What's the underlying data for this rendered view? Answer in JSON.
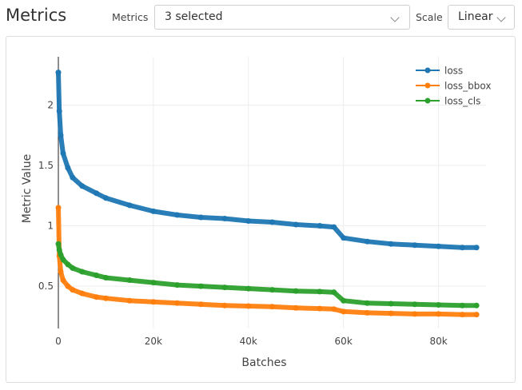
{
  "header": {
    "title": "Metrics",
    "metrics_label": "Metrics",
    "metrics_value": "3 selected",
    "scale_label": "Scale",
    "scale_value": "Linear"
  },
  "chart_data": {
    "type": "line",
    "xlabel": "Batches",
    "ylabel": "Metric Value",
    "xlim": [
      0,
      90000
    ],
    "ylim": [
      0.15,
      2.4
    ],
    "x_ticks": [
      0,
      20000,
      40000,
      60000,
      80000
    ],
    "x_tick_labels": [
      "0",
      "20k",
      "40k",
      "60k",
      "80k"
    ],
    "y_ticks": [
      0.5,
      1,
      1.5,
      2
    ],
    "y_tick_labels": [
      "0.5",
      "1",
      "1.5",
      "2"
    ],
    "grid": true,
    "legend_position": "top-right",
    "series": [
      {
        "name": "loss",
        "color": "#1f77b4",
        "x": [
          0,
          200,
          500,
          1000,
          2000,
          3000,
          5000,
          8000,
          10000,
          15000,
          20000,
          25000,
          30000,
          35000,
          40000,
          45000,
          50000,
          55000,
          58000,
          60000,
          65000,
          70000,
          75000,
          80000,
          85000,
          88000
        ],
        "y": [
          2.27,
          1.95,
          1.75,
          1.6,
          1.48,
          1.4,
          1.33,
          1.27,
          1.23,
          1.17,
          1.12,
          1.09,
          1.07,
          1.06,
          1.04,
          1.03,
          1.01,
          1.0,
          0.99,
          0.9,
          0.87,
          0.85,
          0.84,
          0.83,
          0.82,
          0.82
        ]
      },
      {
        "name": "loss_bbox",
        "color": "#ff7f0e",
        "x": [
          0,
          200,
          500,
          1000,
          2000,
          3000,
          5000,
          8000,
          10000,
          15000,
          20000,
          25000,
          30000,
          35000,
          40000,
          45000,
          50000,
          55000,
          58000,
          60000,
          65000,
          70000,
          75000,
          80000,
          85000,
          88000
        ],
        "y": [
          1.15,
          0.75,
          0.62,
          0.55,
          0.5,
          0.47,
          0.44,
          0.41,
          0.4,
          0.38,
          0.37,
          0.36,
          0.35,
          0.34,
          0.335,
          0.33,
          0.32,
          0.315,
          0.31,
          0.29,
          0.28,
          0.275,
          0.27,
          0.27,
          0.265,
          0.265
        ]
      },
      {
        "name": "loss_cls",
        "color": "#2ca02c",
        "x": [
          0,
          200,
          500,
          1000,
          2000,
          3000,
          5000,
          8000,
          10000,
          15000,
          20000,
          25000,
          30000,
          35000,
          40000,
          45000,
          50000,
          55000,
          58000,
          60000,
          65000,
          70000,
          75000,
          80000,
          85000,
          88000
        ],
        "y": [
          0.85,
          0.8,
          0.76,
          0.72,
          0.68,
          0.65,
          0.62,
          0.59,
          0.57,
          0.55,
          0.53,
          0.51,
          0.5,
          0.49,
          0.48,
          0.47,
          0.46,
          0.455,
          0.45,
          0.38,
          0.36,
          0.355,
          0.35,
          0.345,
          0.34,
          0.34
        ]
      }
    ]
  }
}
